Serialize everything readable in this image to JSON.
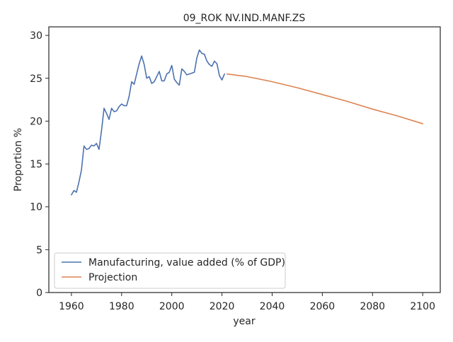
{
  "chart_data": {
    "type": "line",
    "title": "09_ROK NV.IND.MANF.ZS",
    "xlabel": "year",
    "ylabel": "Proportion %",
    "xlim": [
      1951,
      2107
    ],
    "ylim": [
      0,
      31
    ],
    "xticks": [
      1960,
      1980,
      2000,
      2020,
      2040,
      2060,
      2080,
      2100
    ],
    "yticks": [
      0,
      5,
      10,
      15,
      20,
      25,
      30
    ],
    "grid": false,
    "legend_position": "lower-left",
    "series": [
      {
        "name": "Manufacturing, value added (% of GDP)",
        "color": "#4c72b0",
        "x": [
          1960,
          1961,
          1962,
          1963,
          1964,
          1965,
          1966,
          1967,
          1968,
          1969,
          1970,
          1971,
          1972,
          1973,
          1974,
          1975,
          1976,
          1977,
          1978,
          1979,
          1980,
          1981,
          1982,
          1983,
          1984,
          1985,
          1986,
          1987,
          1988,
          1989,
          1990,
          1991,
          1992,
          1993,
          1994,
          1995,
          1996,
          1997,
          1998,
          1999,
          2000,
          2001,
          2002,
          2003,
          2004,
          2005,
          2006,
          2007,
          2008,
          2009,
          2010,
          2011,
          2012,
          2013,
          2014,
          2015,
          2016,
          2017,
          2018,
          2019,
          2020,
          2021
        ],
        "y": [
          11.4,
          11.9,
          11.7,
          12.9,
          14.3,
          17.1,
          16.7,
          16.8,
          17.2,
          17.1,
          17.4,
          16.7,
          18.9,
          21.5,
          20.9,
          20.2,
          21.5,
          21.1,
          21.2,
          21.7,
          22.0,
          21.8,
          21.8,
          22.9,
          24.6,
          24.3,
          25.5,
          26.7,
          27.6,
          26.6,
          25.0,
          25.2,
          24.4,
          24.6,
          25.2,
          25.8,
          24.7,
          24.7,
          25.5,
          25.7,
          26.5,
          24.9,
          24.5,
          24.2,
          26.1,
          25.8,
          25.4,
          25.5,
          25.6,
          25.7,
          27.4,
          28.3,
          27.9,
          27.8,
          27.0,
          26.6,
          26.4,
          27.0,
          26.7,
          25.3,
          24.8,
          25.5
        ]
      },
      {
        "name": "Projection",
        "color": "#dd8452",
        "x": [
          2022,
          2030,
          2040,
          2050,
          2060,
          2070,
          2080,
          2090,
          2100
        ],
        "y": [
          25.5,
          25.2,
          24.6,
          23.9,
          23.1,
          22.3,
          21.4,
          20.6,
          19.7
        ]
      }
    ]
  }
}
